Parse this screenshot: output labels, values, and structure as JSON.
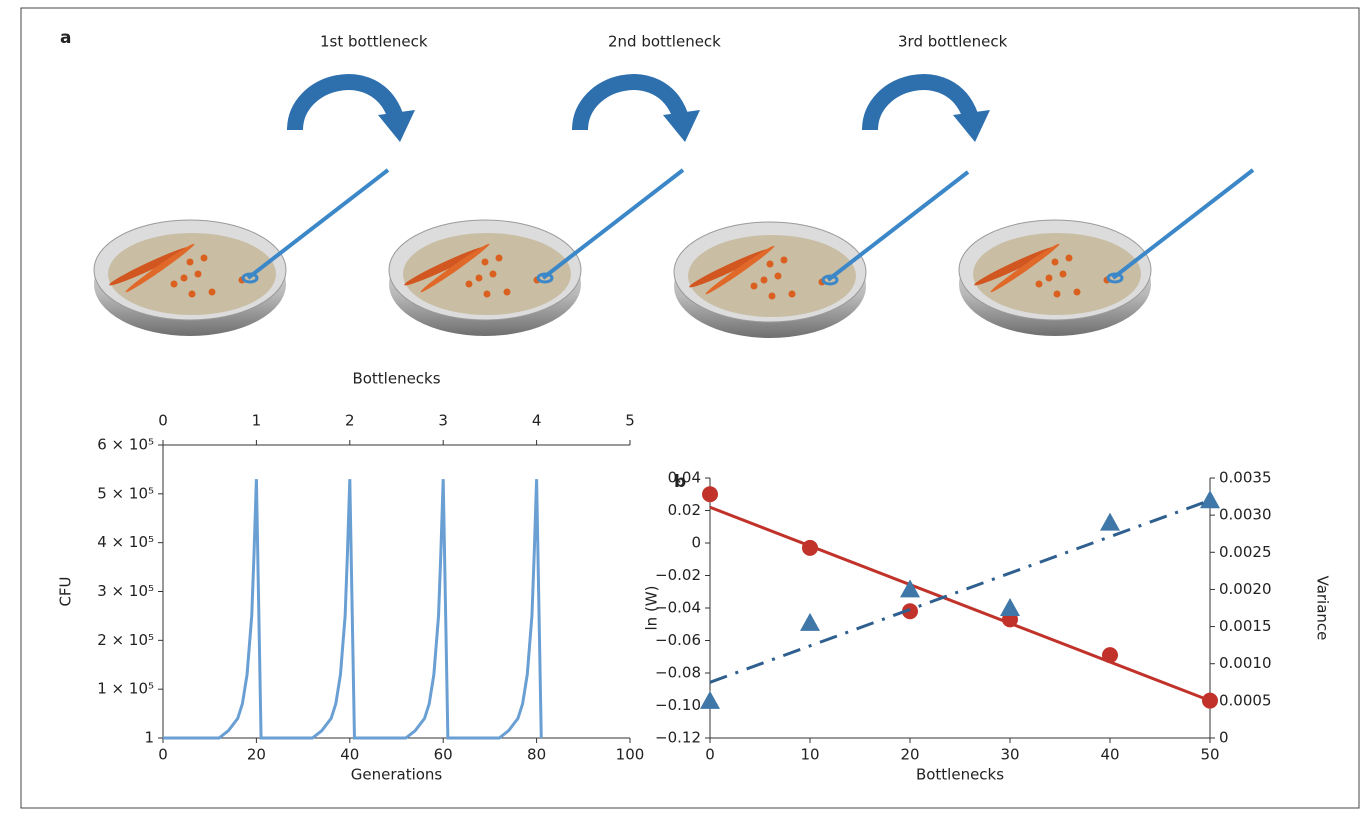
{
  "figure": {
    "panel_label": "a",
    "steps": [
      "1st bottleneck",
      "2nd bottleneck",
      "3rd bottleneck"
    ]
  },
  "chart_data": [
    {
      "type": "line",
      "xlabel": "Generations",
      "ylabel": "CFU",
      "x2label": "Bottlenecks",
      "xlim": [
        0,
        100
      ],
      "xticks": [
        0,
        20,
        40,
        60,
        80,
        100
      ],
      "x2lim": [
        0,
        5
      ],
      "x2ticks": [
        0,
        1,
        2,
        3,
        4,
        5
      ],
      "ylim": [
        1,
        600000
      ],
      "yticks": [
        1,
        {
          "value": 100000,
          "label": "1 × 10⁵"
        },
        {
          "value": 200000,
          "label": "2 × 10⁵"
        },
        {
          "value": 300000,
          "label": "3 × 10⁵"
        },
        {
          "value": 400000,
          "label": "4 × 10⁵"
        },
        {
          "value": 500000,
          "label": "5 × 10⁵"
        },
        {
          "value": 600000,
          "label": "6 × 10⁵"
        }
      ],
      "series": [
        {
          "color": "#6a9fd4",
          "x": [
            0,
            12,
            14,
            16,
            17,
            18,
            19,
            19.5,
            20,
            21,
            32,
            34,
            36,
            37,
            38,
            39,
            39.5,
            40,
            41,
            52,
            54,
            56,
            57,
            58,
            59,
            59.5,
            60,
            61,
            72,
            74,
            76,
            77,
            78,
            79,
            79.5,
            80,
            81
          ],
          "values": [
            1,
            1,
            15000,
            40000,
            70000,
            130000,
            250000,
            380000,
            530000,
            1,
            1,
            15000,
            40000,
            70000,
            130000,
            250000,
            380000,
            530000,
            1,
            1,
            15000,
            40000,
            70000,
            130000,
            250000,
            380000,
            530000,
            1,
            1,
            15000,
            40000,
            70000,
            130000,
            250000,
            380000,
            530000,
            1
          ]
        }
      ]
    },
    {
      "type": "scatter",
      "panel_label": "b",
      "xlabel": "Bottlenecks",
      "ylabel": "ln (W)",
      "y2label": "Variance",
      "xlim": [
        0,
        50
      ],
      "xticks": [
        0,
        10,
        20,
        30,
        40,
        50
      ],
      "ylim": [
        -0.12,
        0.04
      ],
      "yticks": [
        {
          "value": -0.12,
          "label": "−0.12"
        },
        {
          "value": -0.1,
          "label": "−0.10"
        },
        {
          "value": -0.08,
          "label": "−0.08"
        },
        {
          "value": -0.06,
          "label": "−0.06"
        },
        {
          "value": -0.04,
          "label": "−0.04"
        },
        {
          "value": -0.02,
          "label": "−0.02"
        },
        0,
        0.02,
        0.04
      ],
      "y2lim": [
        0,
        0.0035
      ],
      "y2ticks": [
        0,
        0.0005,
        {
          "value": 0.001,
          "label": "0.0010"
        },
        0.0015,
        {
          "value": 0.002,
          "label": "0.0020"
        },
        0.0025,
        {
          "value": 0.003,
          "label": "0.0030"
        },
        0.0035
      ],
      "series": [
        {
          "marker": "circle",
          "color": "#c0322a",
          "x": [
            0,
            10,
            20,
            30,
            40,
            50
          ],
          "values": [
            0.03,
            -0.003,
            -0.042,
            -0.047,
            -0.069,
            -0.097
          ]
        },
        {
          "marker": "line",
          "color": "#c0322a",
          "x": [
            0,
            50
          ],
          "values": [
            0.022,
            -0.097
          ]
        },
        {
          "marker": "triangle",
          "axis": "y2",
          "color": "#3f77a8",
          "x": [
            0,
            10,
            20,
            30,
            40,
            50
          ],
          "values": [
            0.0005,
            0.00155,
            0.002,
            0.00175,
            0.0029,
            0.0032
          ]
        },
        {
          "marker": "line",
          "axis": "y2",
          "color": "#2f5f8f",
          "dash": true,
          "x": [
            0,
            50
          ],
          "values": [
            0.00075,
            0.0032
          ]
        }
      ]
    }
  ]
}
